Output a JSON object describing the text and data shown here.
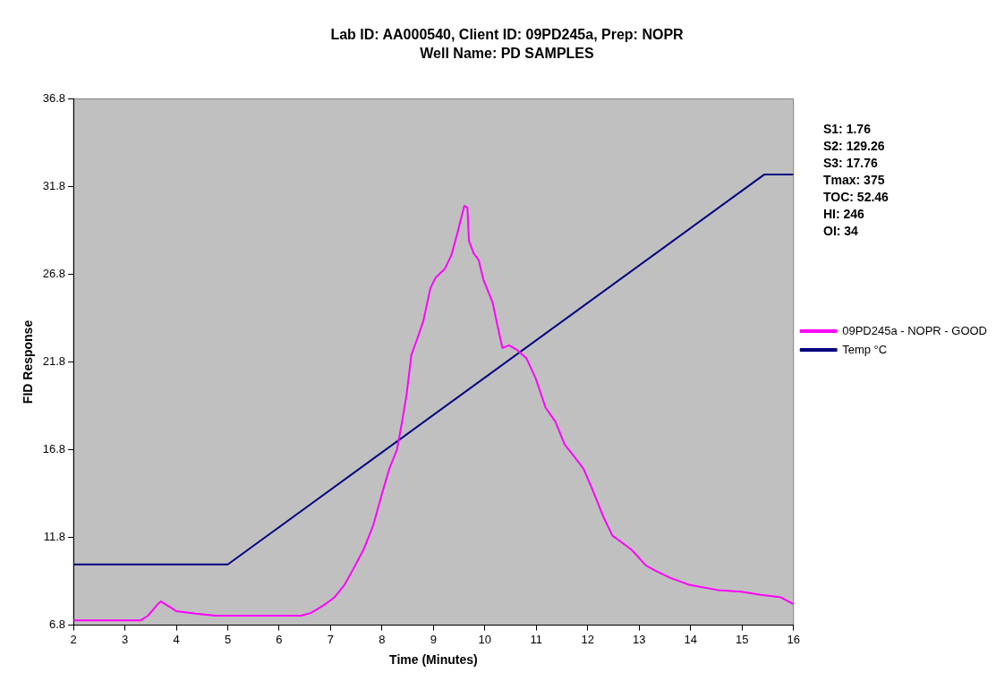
{
  "chart_data": {
    "type": "line",
    "title": "Lab ID: AA000540, Client ID: 09PD245a, Prep: NOPR",
    "subtitle": "Well Name: PD SAMPLES",
    "xlabel": "Time (Minutes)",
    "ylabel": "FID Response",
    "xlim": [
      2,
      16
    ],
    "xticks": [
      2,
      3,
      4,
      5,
      6,
      7,
      8,
      9,
      10,
      11,
      12,
      13,
      14,
      15,
      16
    ],
    "ylim": [
      6.8,
      36.8
    ],
    "yticks": [
      6.8,
      11.8,
      16.8,
      21.8,
      26.8,
      31.8,
      36.8
    ],
    "grid": false,
    "legend": "right",
    "marker": "none",
    "line_style": "solid",
    "annotations": [
      "S1: 1.76",
      "S2: 129.26",
      "S3: 17.76",
      "Tmax: 375",
      "TOC: 52.46",
      "HI: 246",
      "OI: 34"
    ],
    "series": [
      {
        "name": "09PD245a - NOPR - GOOD",
        "color": "#ff00ff",
        "x": [
          2,
          3.3,
          3.45,
          3.64,
          3.7,
          4.0,
          4.38,
          4.76,
          6.43,
          6.62,
          6.9,
          7.08,
          7.27,
          7.45,
          7.64,
          7.83,
          8.01,
          8.14,
          8.29,
          8.39,
          8.48,
          8.57,
          8.67,
          8.8,
          8.94,
          9.04,
          9.22,
          9.35,
          9.47,
          9.6,
          9.66,
          9.69,
          9.78,
          9.88,
          9.97,
          10.15,
          10.25,
          10.34,
          10.47,
          10.62,
          10.81,
          10.99,
          11.18,
          11.37,
          11.55,
          11.74,
          11.92,
          12.11,
          12.3,
          12.48,
          12.67,
          12.85,
          13.13,
          13.32,
          13.6,
          13.97,
          14.53,
          14.99,
          15.37,
          15.74,
          16
        ],
        "values": [
          7.07,
          7.07,
          7.34,
          8.0,
          8.15,
          7.6,
          7.45,
          7.34,
          7.34,
          7.5,
          8.0,
          8.4,
          9.1,
          10.05,
          11.1,
          12.5,
          14.4,
          15.7,
          16.8,
          18.4,
          20.0,
          22.2,
          23.0,
          24.1,
          26.0,
          26.6,
          27.1,
          27.9,
          29.2,
          30.7,
          30.6,
          28.7,
          28.0,
          27.6,
          26.5,
          25.2,
          23.8,
          22.6,
          22.75,
          22.5,
          22.0,
          20.85,
          19.2,
          18.4,
          17.1,
          16.4,
          15.7,
          14.4,
          13.0,
          11.9,
          11.5,
          11.1,
          10.2,
          9.9,
          9.5,
          9.1,
          8.8,
          8.7,
          8.53,
          8.4,
          8.0
        ]
      },
      {
        "name": "Temp °C",
        "color": "#000080",
        "x": [
          2,
          5,
          15.43,
          16
        ],
        "values": [
          10.26,
          10.26,
          32.48,
          32.48
        ]
      }
    ]
  }
}
